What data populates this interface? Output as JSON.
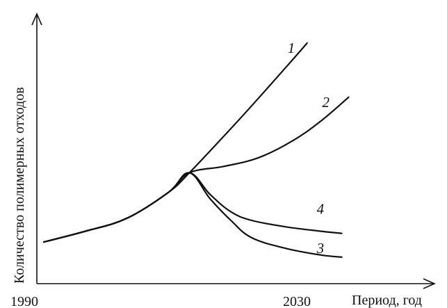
{
  "chart_data": {
    "type": "line",
    "xlabel": "Период, год",
    "ylabel": "Количество полимерных отходов",
    "x_tick_labels": [
      "1990",
      "2030"
    ],
    "xlim": [
      1990,
      2050
    ],
    "ylim": [
      0,
      100
    ],
    "grid": false,
    "legend": "none",
    "series": [
      {
        "name": "1",
        "x": [
          1990,
          1996,
          2002,
          2008,
          2011,
          2016,
          2020,
          2025,
          2028
        ],
        "y": [
          8,
          13,
          19,
          31,
          40,
          57,
          71,
          89,
          100
        ]
      },
      {
        "name": "2",
        "x": [
          1990,
          1996,
          2002,
          2008,
          2011,
          2016,
          2021,
          2026,
          2030,
          2034
        ],
        "y": [
          8,
          13,
          19,
          31,
          40,
          43,
          47,
          55,
          64,
          75
        ]
      },
      {
        "name": "3",
        "x": [
          1990,
          1996,
          2002,
          2008,
          2011,
          2014,
          2017,
          2020,
          2025,
          2030,
          2033
        ],
        "y": [
          8,
          13,
          19,
          31,
          40,
          28,
          18,
          10,
          5,
          2,
          1
        ]
      },
      {
        "name": "4",
        "x": [
          1990,
          1996,
          2002,
          2008,
          2011,
          2014,
          2017,
          2020,
          2025,
          2030,
          2033
        ],
        "y": [
          8,
          13,
          19,
          31,
          40,
          30,
          22,
          18,
          15,
          13,
          12
        ]
      }
    ]
  }
}
